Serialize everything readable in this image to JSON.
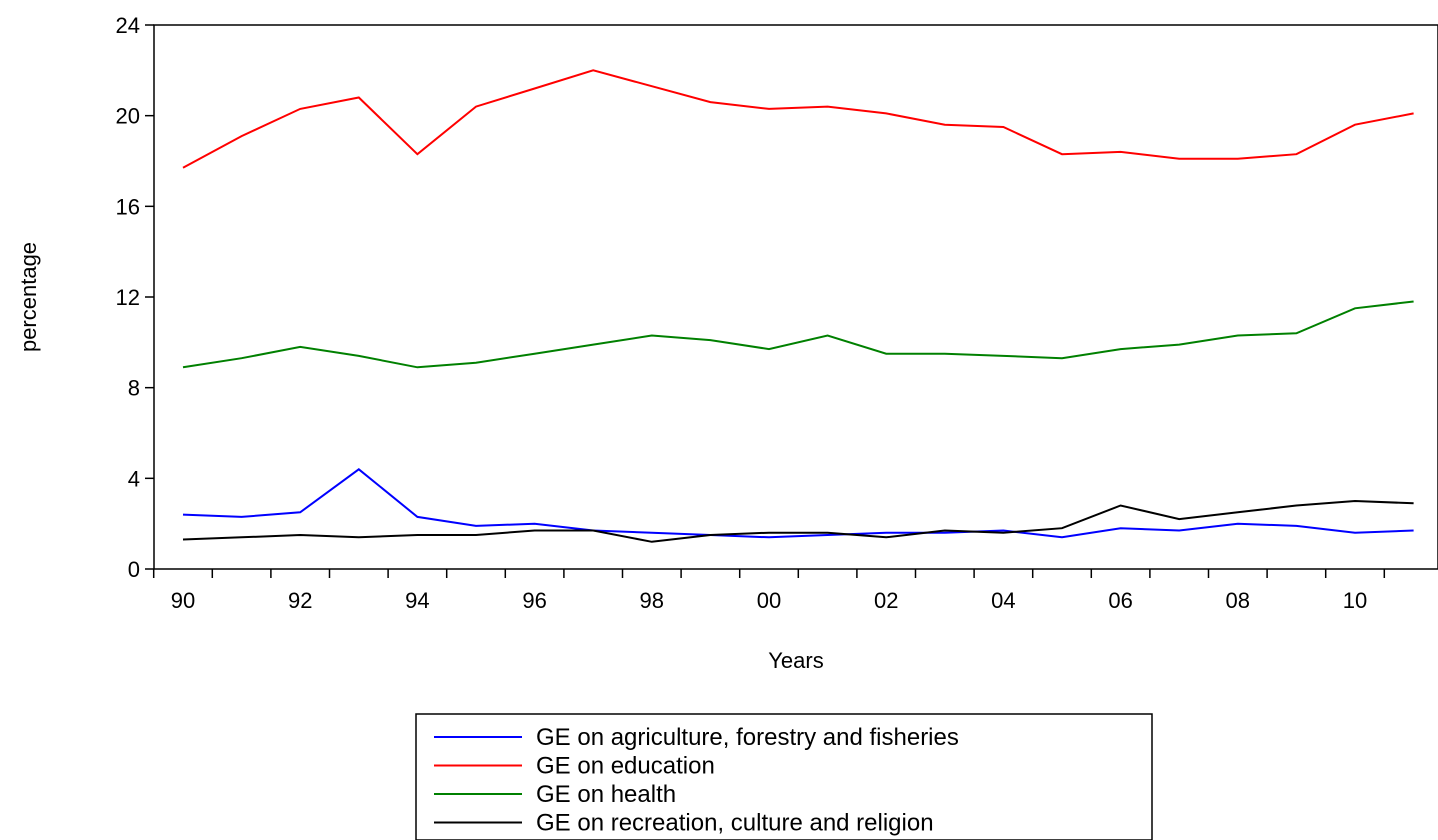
{
  "chart_data": {
    "type": "line",
    "xlabel": "Years",
    "ylabel": "percentage",
    "ylim": [
      0,
      24
    ],
    "yticks": [
      "0",
      "4",
      "8",
      "12",
      "16",
      "20",
      "24"
    ],
    "xlim": [
      1990,
      2011
    ],
    "x": [
      1990,
      1991,
      1992,
      1993,
      1994,
      1995,
      1996,
      1997,
      1998,
      1999,
      2000,
      2001,
      2002,
      2003,
      2004,
      2005,
      2006,
      2007,
      2008,
      2009,
      2010,
      2011
    ],
    "xtick_labels": [
      "90",
      "92",
      "94",
      "96",
      "98",
      "00",
      "02",
      "04",
      "06",
      "08",
      "10"
    ],
    "grid": false,
    "legend_position": "bottom",
    "series": [
      {
        "name": "GE on agriculture, forestry and fisheries",
        "color": "#0000ff",
        "values": [
          2.4,
          2.3,
          2.5,
          4.4,
          2.3,
          1.9,
          2.0,
          1.7,
          1.6,
          1.5,
          1.4,
          1.5,
          1.6,
          1.6,
          1.7,
          1.4,
          1.8,
          1.7,
          2.0,
          1.9,
          1.6,
          1.7
        ]
      },
      {
        "name": "GE on education",
        "color": "#ff0000",
        "values": [
          17.7,
          19.1,
          20.3,
          20.8,
          18.3,
          20.4,
          21.2,
          22.0,
          21.3,
          20.6,
          20.3,
          20.4,
          20.1,
          19.6,
          19.5,
          18.3,
          18.4,
          18.1,
          18.1,
          18.3,
          19.6,
          20.1
        ]
      },
      {
        "name": "GE on health",
        "color": "#008000",
        "values": [
          8.9,
          9.3,
          9.8,
          9.4,
          8.9,
          9.1,
          9.5,
          9.9,
          10.3,
          10.1,
          9.7,
          10.3,
          9.5,
          9.5,
          9.4,
          9.3,
          9.7,
          9.9,
          10.3,
          10.4,
          11.5,
          11.8
        ]
      },
      {
        "name": "GE on recreation, culture and religion",
        "color": "#000000",
        "values": [
          1.3,
          1.4,
          1.5,
          1.4,
          1.5,
          1.5,
          1.7,
          1.7,
          1.2,
          1.5,
          1.6,
          1.6,
          1.4,
          1.7,
          1.6,
          1.8,
          2.8,
          2.2,
          2.5,
          2.8,
          3.0,
          2.9
        ]
      }
    ]
  }
}
